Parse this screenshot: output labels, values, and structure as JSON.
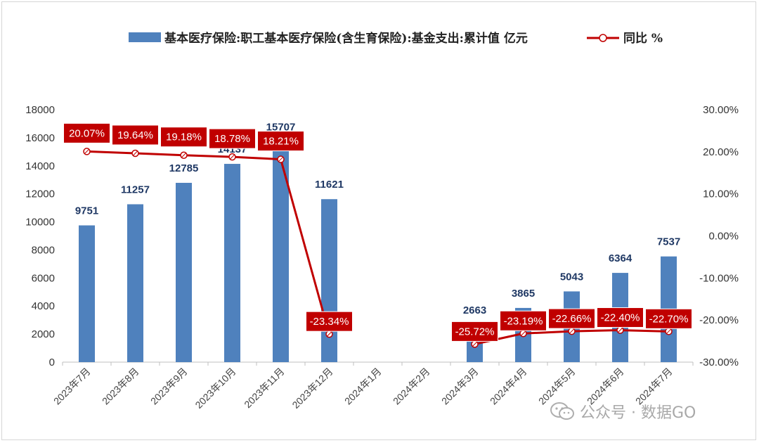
{
  "chart_data": {
    "type": "bar",
    "categories": [
      "2023年7月",
      "2023年8月",
      "2023年9月",
      "2023年10月",
      "2023年11月",
      "2023年12月",
      "2024年1月",
      "2024年2月",
      "2024年3月",
      "2024年4月",
      "2024年5月",
      "2024年6月",
      "2024年7月"
    ],
    "series": [
      {
        "name": "基本医疗保险:职工基本医疗保险(含生育保险):基金支出:累计值 亿元",
        "type": "bar",
        "axis": "left",
        "color": "#4f81bd",
        "values": [
          9751,
          11257,
          12785,
          14137,
          15707,
          11621,
          null,
          null,
          2663,
          3865,
          5043,
          6364,
          7537
        ],
        "labels": [
          "9751",
          "11257",
          "12785",
          "14137",
          "15707",
          "11621",
          "",
          "",
          "2663",
          "3865",
          "5043",
          "6364",
          "7537"
        ]
      },
      {
        "name": "同比 %",
        "type": "line",
        "axis": "right",
        "color": "#c00000",
        "values": [
          20.07,
          19.64,
          19.18,
          18.78,
          18.21,
          -23.34,
          null,
          null,
          -25.72,
          -23.19,
          -22.66,
          -22.4,
          -22.7
        ],
        "labels": [
          "20.07%",
          "19.64%",
          "19.18%",
          "18.78%",
          "18.21%",
          "-23.34%",
          "",
          "",
          "-25.72%",
          "-23.19%",
          "-22.66%",
          "-22.40%",
          "-22.70%"
        ]
      }
    ],
    "y_left": {
      "min": 0,
      "max": 18000,
      "step": 2000,
      "ticks": [
        "0",
        "2000",
        "4000",
        "6000",
        "8000",
        "10000",
        "12000",
        "14000",
        "16000",
        "18000"
      ]
    },
    "y_right": {
      "min": -30,
      "max": 30,
      "step": 10,
      "ticks": [
        "-30.00%",
        "-20.00%",
        "-10.00%",
        "0.00%",
        "10.00%",
        "20.00%",
        "30.00%"
      ]
    },
    "legend_position": "top",
    "grid": false
  },
  "watermark": {
    "text": "公众号 · 数据GO",
    "icon": "wechat-icon"
  }
}
